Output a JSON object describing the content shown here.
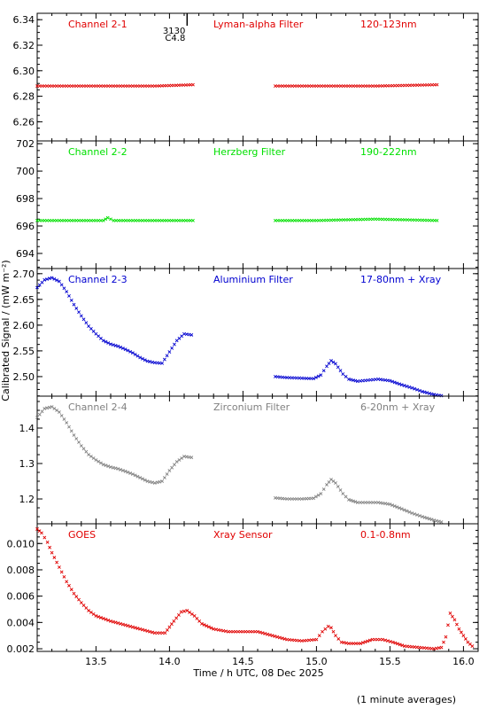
{
  "figure": {
    "ylabel": "Calibrated Signal / (mW m⁻²)",
    "xlabel": "Time / h UTC, 08 Dec 2025",
    "footnote": "(1 minute averages)",
    "marker_text_1": "3130",
    "marker_text_2": "C4.8"
  },
  "chart_data": [
    {
      "type": "scatter",
      "title": "Channel 2-1",
      "filter": "Lyman-alpha Filter",
      "band": "120-123nm",
      "color": "#e00000",
      "xlim": [
        13.1,
        16.1
      ],
      "ylim": [
        6.245,
        6.345
      ],
      "yticks": [
        6.26,
        6.28,
        6.3,
        6.32,
        6.34
      ],
      "ytick_labels": [
        "6.26",
        "6.28",
        "6.30",
        "6.32",
        "6.34"
      ],
      "series": [
        {
          "x": [
            13.1,
            13.5,
            13.9,
            14.16
          ],
          "y": [
            6.288,
            6.288,
            6.288,
            6.289
          ]
        },
        {
          "x": [
            14.72,
            15.0,
            15.4,
            15.82
          ],
          "y": [
            6.288,
            6.288,
            6.288,
            6.289
          ]
        }
      ]
    },
    {
      "type": "scatter",
      "title": "Channel 2-2",
      "filter": "Herzberg Filter",
      "band": "190-222nm",
      "color": "#00e000",
      "xlim": [
        13.1,
        16.1
      ],
      "ylim": [
        692.9,
        702.2
      ],
      "yticks": [
        694,
        696,
        698,
        700,
        702
      ],
      "ytick_labels": [
        "694",
        "696",
        "698",
        "700",
        "702"
      ],
      "series": [
        {
          "x": [
            13.1,
            13.55,
            13.58,
            13.62,
            13.9,
            14.16
          ],
          "y": [
            696.4,
            696.4,
            696.6,
            696.4,
            696.4,
            696.4
          ]
        },
        {
          "x": [
            14.72,
            15.0,
            15.4,
            15.82
          ],
          "y": [
            696.4,
            696.4,
            696.5,
            696.4
          ]
        }
      ]
    },
    {
      "type": "scatter",
      "title": "Channel 2-3",
      "filter": "Aluminium Filter",
      "band": "17-80nm + Xray",
      "color": "#0000d0",
      "xlim": [
        13.1,
        16.1
      ],
      "ylim": [
        2.462,
        2.71
      ],
      "yticks": [
        2.5,
        2.55,
        2.6,
        2.65,
        2.7
      ],
      "ytick_labels": [
        "2.50",
        "2.55",
        "2.60",
        "2.65",
        "2.70"
      ],
      "series": [
        {
          "x": [
            13.1,
            13.15,
            13.2,
            13.25,
            13.3,
            13.35,
            13.4,
            13.45,
            13.5,
            13.55,
            13.6,
            13.65,
            13.7,
            13.75,
            13.8,
            13.85,
            13.9,
            13.95,
            14.0,
            14.05,
            14.1,
            14.15
          ],
          "y": [
            2.673,
            2.688,
            2.692,
            2.685,
            2.665,
            2.64,
            2.618,
            2.598,
            2.583,
            2.57,
            2.563,
            2.559,
            2.553,
            2.546,
            2.537,
            2.53,
            2.527,
            2.526,
            2.548,
            2.57,
            2.583,
            2.581
          ]
        },
        {
          "x": [
            14.72,
            14.8,
            14.9,
            14.98,
            15.03,
            15.07,
            15.1,
            15.13,
            15.18,
            15.22,
            15.28,
            15.35,
            15.42,
            15.5,
            15.58,
            15.65,
            15.72,
            15.8,
            15.85
          ],
          "y": [
            2.5,
            2.498,
            2.497,
            2.496,
            2.503,
            2.52,
            2.531,
            2.525,
            2.505,
            2.495,
            2.491,
            2.493,
            2.495,
            2.492,
            2.484,
            2.478,
            2.471,
            2.465,
            2.463
          ]
        }
      ]
    },
    {
      "type": "scatter",
      "title": "Channel 2-4",
      "filter": "Zirconium Filter",
      "band": "6-20nm + Xray",
      "color": "#808080",
      "xlim": [
        13.1,
        16.1
      ],
      "ylim": [
        1.13,
        1.49
      ],
      "yticks": [
        1.2,
        1.3,
        1.4
      ],
      "ytick_labels": [
        "1.2",
        "1.3",
        "1.4"
      ],
      "series": [
        {
          "x": [
            13.1,
            13.15,
            13.2,
            13.25,
            13.3,
            13.35,
            13.4,
            13.45,
            13.5,
            13.55,
            13.6,
            13.65,
            13.7,
            13.75,
            13.8,
            13.85,
            13.9,
            13.95,
            14.0,
            14.05,
            14.1,
            14.15
          ],
          "y": [
            1.43,
            1.455,
            1.46,
            1.445,
            1.415,
            1.38,
            1.35,
            1.325,
            1.31,
            1.297,
            1.29,
            1.285,
            1.278,
            1.27,
            1.26,
            1.25,
            1.245,
            1.25,
            1.28,
            1.305,
            1.32,
            1.317
          ]
        },
        {
          "x": [
            14.72,
            14.8,
            14.9,
            14.98,
            15.03,
            15.07,
            15.1,
            15.13,
            15.18,
            15.22,
            15.28,
            15.35,
            15.42,
            15.5,
            15.58,
            15.65,
            15.72,
            15.8,
            15.85
          ],
          "y": [
            1.203,
            1.2,
            1.2,
            1.202,
            1.215,
            1.24,
            1.255,
            1.245,
            1.215,
            1.198,
            1.19,
            1.19,
            1.19,
            1.185,
            1.172,
            1.16,
            1.15,
            1.14,
            1.135
          ]
        }
      ]
    },
    {
      "type": "scatter",
      "title": "GOES",
      "filter": "Xray Sensor",
      "band": "0.1-0.8nm",
      "color": "#e00000",
      "xlim": [
        13.1,
        16.1
      ],
      "ylim": [
        0.0018,
        0.0115
      ],
      "yticks": [
        0.002,
        0.004,
        0.006,
        0.008,
        0.01
      ],
      "ytick_labels": [
        "0.002",
        "0.004",
        "0.006",
        "0.008",
        "0.010"
      ],
      "series": [
        {
          "x": [
            13.1,
            13.13,
            13.17,
            13.2,
            13.25,
            13.3,
            13.35,
            13.4,
            13.45,
            13.5,
            13.55,
            13.6,
            13.7,
            13.8,
            13.9,
            13.97,
            14.03,
            14.08,
            14.12,
            14.17,
            14.22,
            14.3,
            14.4,
            14.5,
            14.6,
            14.7,
            14.8,
            14.9,
            15.0,
            15.04,
            15.08,
            15.1,
            15.13,
            15.17,
            15.22,
            15.3,
            15.38,
            15.45,
            15.52,
            15.6,
            15.7,
            15.8,
            15.85,
            15.88,
            15.91,
            15.94,
            15.97,
            16.0,
            16.03,
            16.06
          ],
          "y": [
            0.0111,
            0.0108,
            0.0101,
            0.0093,
            0.0082,
            0.0071,
            0.0062,
            0.0055,
            0.0049,
            0.0045,
            0.0043,
            0.0041,
            0.0038,
            0.0035,
            0.0032,
            0.0032,
            0.0041,
            0.0048,
            0.0049,
            0.0045,
            0.0039,
            0.0035,
            0.0033,
            0.0033,
            0.0033,
            0.003,
            0.0027,
            0.0026,
            0.0027,
            0.0033,
            0.0037,
            0.0036,
            0.003,
            0.0025,
            0.0024,
            0.0024,
            0.0027,
            0.0027,
            0.0025,
            0.0022,
            0.0021,
            0.002,
            0.0021,
            0.0029,
            0.0047,
            0.0042,
            0.0035,
            0.003,
            0.0025,
            0.0022
          ]
        }
      ]
    }
  ],
  "x_axis": {
    "ticks": [
      13.5,
      14.0,
      14.5,
      15.0,
      15.5,
      16.0
    ],
    "tick_labels": [
      "13.5",
      "14.0",
      "14.5",
      "15.0",
      "15.5",
      "16.0"
    ],
    "minor_step": 0.1
  },
  "flare_marker_x": 14.12
}
